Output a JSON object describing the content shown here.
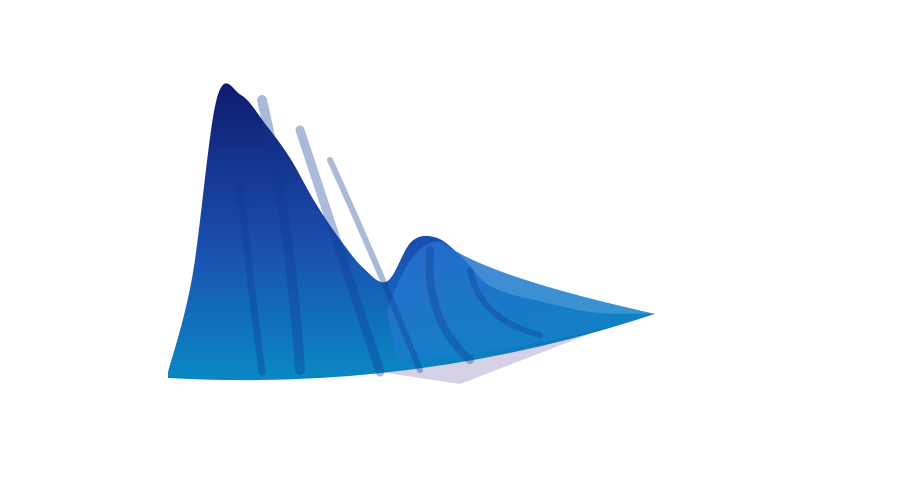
{
  "chart_data": {
    "type": "area",
    "subtype": "3d-surface",
    "title": "",
    "xlabel": "",
    "ylabel": "",
    "zlabel": "",
    "axes_visible": false,
    "grid": false,
    "legend": "none",
    "colors": {
      "peak": "#0f1a6e",
      "mid": "#1a4fb0",
      "base": "#0a88c4",
      "shadow": "#d6d0e6",
      "fold_dark": "#0d3a8e",
      "fold_light": "#2a6fd0"
    },
    "series": [
      {
        "x": [
          0,
          0.5,
          1,
          1.5,
          2,
          2.5,
          3,
          3.5,
          4,
          4.5,
          5,
          5.5,
          6,
          6.5,
          7,
          7.5,
          8,
          8.5,
          9,
          9.5,
          10
        ],
        "values": [
          0.02,
          0.35,
          0.98,
          1.0,
          0.9,
          0.78,
          0.62,
          0.48,
          0.36,
          0.3,
          0.45,
          0.46,
          0.38,
          0.26,
          0.2,
          0.16,
          0.12,
          0.08,
          0.05,
          0.03,
          0.01
        ]
      }
    ]
  }
}
